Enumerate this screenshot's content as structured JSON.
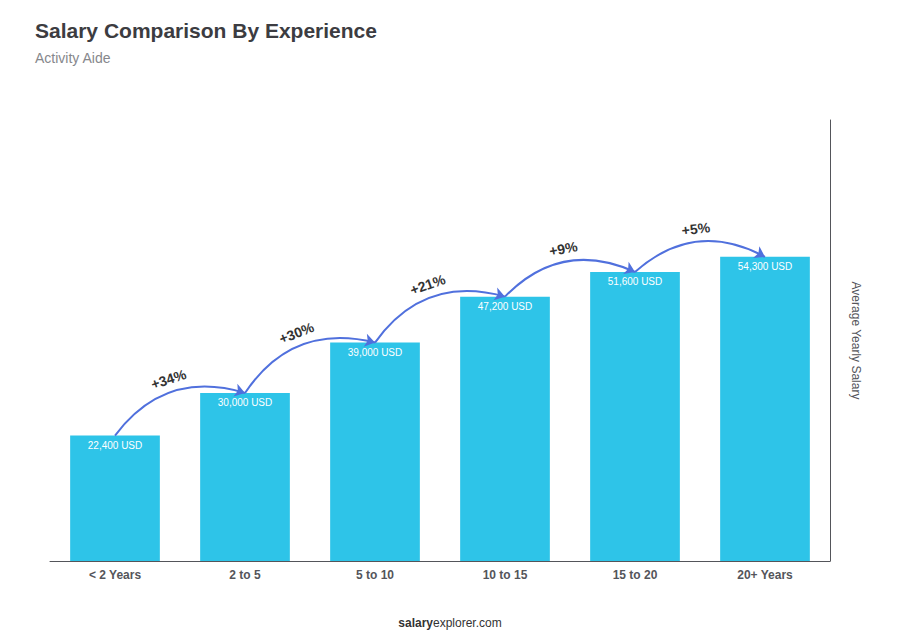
{
  "chart_data": {
    "type": "bar",
    "title": "Salary Comparison By Experience",
    "subtitle": "Activity Aide",
    "ylabel": "Average Yearly Salary",
    "footer": [
      "salary",
      "explorer.com"
    ],
    "categories": [
      "< 2 Years",
      "2 to 5",
      "5 to 10",
      "10 to 15",
      "15 to 20",
      "20+ Years"
    ],
    "values": [
      22400,
      30000,
      39000,
      47200,
      51600,
      54300
    ],
    "value_labels": [
      "22,400 USD",
      "30,000 USD",
      "39,000 USD",
      "47,200 USD",
      "51,600 USD",
      "54,300 USD"
    ],
    "data_labels": true,
    "annotations": [
      null,
      "+34%",
      "+30%",
      "+21%",
      "+9%",
      "+5%"
    ],
    "color": "#2ec4e8",
    "ylim": [
      0,
      78735
    ],
    "grid": false,
    "tick_labels": "x"
  }
}
